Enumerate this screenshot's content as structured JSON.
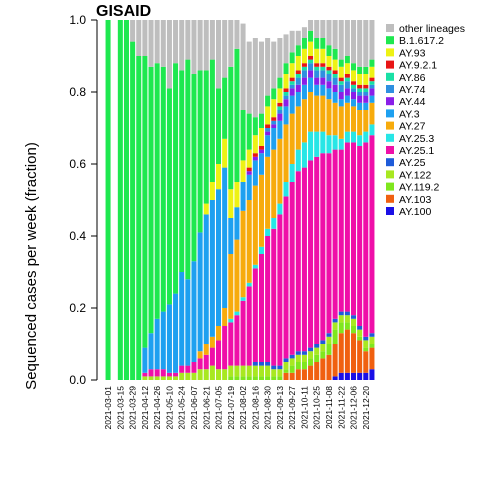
{
  "chart_data": {
    "type": "bar",
    "stacked": true,
    "title": "GISAID",
    "ylabel": "Sequenced cases per week (fraction)",
    "xlabel": "",
    "ylim": [
      0,
      1
    ],
    "y_ticks": [
      "0.0",
      "0.2",
      "0.4",
      "0.6",
      "0.8",
      "1.0"
    ],
    "x_tick_labels": [
      "2021-03-01",
      "2021-03-15",
      "2021-03-29",
      "2021-04-12",
      "2021-04-26",
      "2021-05-10",
      "2021-05-24",
      "2021-06-07",
      "2021-06-21",
      "2021-07-05",
      "2021-07-19",
      "2021-08-02",
      "2021-08-16",
      "2021-08-30",
      "2021-09-13",
      "2021-09-27",
      "2021-10-11",
      "2021-10-25",
      "2021-11-08",
      "2021-11-22",
      "2021-12-06",
      "2021-12-20"
    ],
    "categories": [
      "2021-03-01",
      "2021-03-08",
      "2021-03-15",
      "2021-03-22",
      "2021-03-29",
      "2021-04-05",
      "2021-04-12",
      "2021-04-19",
      "2021-04-26",
      "2021-05-03",
      "2021-05-10",
      "2021-05-17",
      "2021-05-24",
      "2021-05-31",
      "2021-06-07",
      "2021-06-14",
      "2021-06-21",
      "2021-06-28",
      "2021-07-05",
      "2021-07-12",
      "2021-07-19",
      "2021-07-26",
      "2021-08-02",
      "2021-08-09",
      "2021-08-16",
      "2021-08-23",
      "2021-08-30",
      "2021-09-06",
      "2021-09-13",
      "2021-09-20",
      "2021-09-27",
      "2021-10-04",
      "2021-10-11",
      "2021-10-18",
      "2021-10-25",
      "2021-11-01",
      "2021-11-08",
      "2021-11-15",
      "2021-11-22",
      "2021-11-29",
      "2021-12-06",
      "2021-12-13",
      "2021-12-20",
      "2021-12-27"
    ],
    "grid": false,
    "legend_position": "right",
    "series": [
      {
        "name": "AY.100",
        "color": "#1a0fe6",
        "values": [
          0,
          0,
          0,
          0,
          0,
          0,
          0,
          0,
          0,
          0,
          0,
          0,
          0,
          0,
          0,
          0,
          0,
          0,
          0,
          0,
          0,
          0,
          0,
          0,
          0,
          0,
          0,
          0,
          0,
          0,
          0,
          0,
          0,
          0,
          0,
          0,
          0,
          0.01,
          0.02,
          0.02,
          0.02,
          0.02,
          0.02,
          0.03
        ]
      },
      {
        "name": "AY.103",
        "color": "#f06010",
        "values": [
          0,
          0,
          0,
          0,
          0,
          0,
          0,
          0,
          0,
          0,
          0,
          0,
          0,
          0,
          0,
          0,
          0,
          0,
          0,
          0,
          0,
          0,
          0,
          0,
          0,
          0,
          0,
          0,
          0,
          0.02,
          0.02,
          0.03,
          0.03,
          0.04,
          0.05,
          0.06,
          0.07,
          0.09,
          0.11,
          0.12,
          0.11,
          0.09,
          0.06,
          0.06
        ]
      },
      {
        "name": "AY.119.2",
        "color": "#7fe71e",
        "values": [
          0,
          0,
          0,
          0,
          0,
          0,
          0,
          0,
          0,
          0,
          0,
          0,
          0,
          0,
          0,
          0,
          0,
          0,
          0,
          0,
          0.01,
          0.01,
          0.01,
          0.01,
          0.01,
          0.01,
          0.01,
          0.01,
          0.01,
          0.01,
          0.02,
          0.02,
          0.02,
          0.02,
          0.02,
          0.02,
          0.03,
          0.04,
          0.03,
          0.02,
          0.02,
          0.01,
          0.01,
          0.01
        ]
      },
      {
        "name": "AY.122",
        "color": "#a8e821",
        "values": [
          0,
          0,
          0,
          0,
          0,
          0,
          0.01,
          0.01,
          0.01,
          0.01,
          0.01,
          0.01,
          0.02,
          0.02,
          0.02,
          0.03,
          0.03,
          0.04,
          0.03,
          0.03,
          0.03,
          0.03,
          0.03,
          0.03,
          0.03,
          0.03,
          0.03,
          0.02,
          0.02,
          0.02,
          0.02,
          0.02,
          0.02,
          0.02,
          0.02,
          0.02,
          0.02,
          0.02,
          0.02,
          0.02,
          0.02,
          0.02,
          0.02,
          0.02
        ]
      },
      {
        "name": "AY.25",
        "color": "#1e5bd9",
        "values": [
          0,
          0,
          0,
          0,
          0,
          0,
          0,
          0,
          0,
          0,
          0,
          0,
          0,
          0,
          0,
          0,
          0,
          0,
          0,
          0,
          0,
          0,
          0,
          0,
          0.01,
          0.01,
          0.01,
          0.01,
          0.01,
          0.01,
          0.01,
          0.01,
          0.01,
          0.01,
          0.01,
          0.01,
          0.01,
          0.01,
          0.01,
          0.01,
          0.01,
          0.01,
          0.01,
          0.01
        ]
      },
      {
        "name": "AY.25.1",
        "color": "#ef0fa8",
        "values": [
          0,
          0,
          0,
          0,
          0,
          0,
          0.01,
          0.02,
          0.02,
          0.02,
          0.01,
          0.01,
          0.02,
          0.02,
          0.03,
          0.03,
          0.04,
          0.05,
          0.08,
          0.12,
          0.12,
          0.14,
          0.18,
          0.22,
          0.26,
          0.3,
          0.35,
          0.38,
          0.42,
          0.45,
          0.48,
          0.5,
          0.51,
          0.52,
          0.52,
          0.52,
          0.5,
          0.47,
          0.45,
          0.47,
          0.48,
          0.5,
          0.54,
          0.55
        ]
      },
      {
        "name": "AY.25.3",
        "color": "#27e6e6",
        "values": [
          0,
          0,
          0,
          0,
          0,
          0,
          0,
          0,
          0,
          0,
          0,
          0,
          0,
          0,
          0,
          0,
          0,
          0,
          0,
          0,
          0.01,
          0.01,
          0.01,
          0.01,
          0.01,
          0.02,
          0.02,
          0.03,
          0.03,
          0.04,
          0.05,
          0.06,
          0.07,
          0.08,
          0.07,
          0.06,
          0.05,
          0.04,
          0.03,
          0.03,
          0.03,
          0.03,
          0.03,
          0.03
        ]
      },
      {
        "name": "AY.27",
        "color": "#f7ab0c",
        "values": [
          0,
          0,
          0,
          0,
          0,
          0,
          0,
          0,
          0,
          0,
          0,
          0,
          0,
          0,
          0,
          0.02,
          0.03,
          0.03,
          0.04,
          0.05,
          0.18,
          0.2,
          0.24,
          0.23,
          0.22,
          0.2,
          0.2,
          0.19,
          0.18,
          0.16,
          0.14,
          0.12,
          0.12,
          0.11,
          0.1,
          0.1,
          0.1,
          0.09,
          0.09,
          0.08,
          0.07,
          0.07,
          0.06,
          0.06
        ]
      },
      {
        "name": "AY.3",
        "color": "#1ea0f0",
        "values": [
          0,
          0,
          0,
          0,
          0,
          0,
          0.07,
          0.1,
          0.14,
          0.16,
          0.19,
          0.22,
          0.26,
          0.24,
          0.28,
          0.33,
          0.36,
          0.38,
          0.38,
          0.39,
          0.1,
          0.09,
          0.08,
          0.07,
          0.07,
          0.06,
          0.06,
          0.06,
          0.05,
          0.05,
          0.05,
          0.04,
          0.04,
          0.04,
          0.03,
          0.03,
          0.03,
          0.03,
          0.02,
          0.02,
          0.02,
          0.02,
          0.02,
          0.02
        ]
      },
      {
        "name": "AY.44",
        "color": "#8a1ee8",
        "values": [
          0,
          0,
          0,
          0,
          0,
          0,
          0,
          0,
          0,
          0,
          0,
          0,
          0,
          0,
          0,
          0,
          0,
          0,
          0,
          0,
          0,
          0,
          0,
          0.01,
          0.01,
          0.01,
          0.01,
          0.01,
          0.02,
          0.02,
          0.02,
          0.02,
          0.02,
          0.02,
          0.02,
          0.02,
          0.02,
          0.02,
          0.02,
          0.02,
          0.02,
          0.02,
          0.02,
          0.02
        ]
      },
      {
        "name": "AY.74",
        "color": "#2e8fe0",
        "values": [
          0,
          0,
          0,
          0,
          0,
          0,
          0,
          0,
          0,
          0,
          0,
          0,
          0,
          0,
          0,
          0,
          0,
          0,
          0,
          0,
          0,
          0,
          0,
          0,
          0,
          0,
          0.01,
          0.01,
          0.01,
          0.01,
          0.01,
          0.02,
          0.02,
          0.02,
          0.02,
          0.02,
          0.02,
          0.02,
          0.02,
          0.02,
          0.01,
          0.01,
          0.01,
          0.01
        ]
      },
      {
        "name": "AY.86",
        "color": "#19e0a5",
        "values": [
          0,
          0,
          0,
          0,
          0,
          0,
          0,
          0,
          0,
          0,
          0,
          0,
          0,
          0,
          0,
          0,
          0,
          0,
          0,
          0,
          0,
          0,
          0,
          0,
          0,
          0,
          0,
          0,
          0.01,
          0.01,
          0.01,
          0.01,
          0.01,
          0.01,
          0.01,
          0.01,
          0.01,
          0.01,
          0.01,
          0.01,
          0.01,
          0.01,
          0.01,
          0.01
        ]
      },
      {
        "name": "AY.9.2.1",
        "color": "#e81515",
        "values": [
          0,
          0,
          0,
          0,
          0,
          0,
          0,
          0,
          0,
          0,
          0,
          0,
          0,
          0,
          0,
          0,
          0,
          0,
          0,
          0,
          0,
          0,
          0,
          0.01,
          0.01,
          0.01,
          0.01,
          0.01,
          0.01,
          0.01,
          0.01,
          0.01,
          0.01,
          0.01,
          0.01,
          0.01,
          0.01,
          0.01,
          0.01,
          0.01,
          0.01,
          0.01,
          0.01,
          0.01
        ]
      },
      {
        "name": "AY.93",
        "color": "#eef214",
        "values": [
          0,
          0,
          0,
          0,
          0,
          0,
          0,
          0,
          0,
          0,
          0,
          0,
          0,
          0,
          0,
          0,
          0.03,
          0.05,
          0.07,
          0.08,
          0.08,
          0.07,
          0.06,
          0.05,
          0.05,
          0.05,
          0.05,
          0.05,
          0.04,
          0.04,
          0.04,
          0.04,
          0.04,
          0.04,
          0.04,
          0.04,
          0.03,
          0.03,
          0.03,
          0.03,
          0.03,
          0.03,
          0.03,
          0.03
        ]
      },
      {
        "name": "B.1.617.2",
        "color": "#1ee84f",
        "values": [
          1.0,
          0,
          1.0,
          1.0,
          0.94,
          0.9,
          0.81,
          0.74,
          0.71,
          0.68,
          0.6,
          0.64,
          0.56,
          0.61,
          0.52,
          0.45,
          0.37,
          0.34,
          0.21,
          0.17,
          0.34,
          0.37,
          0.14,
          0.1,
          0.05,
          0.04,
          0.03,
          0.03,
          0.03,
          0.03,
          0.03,
          0.03,
          0.03,
          0.03,
          0.03,
          0.03,
          0.03,
          0.03,
          0.02,
          0.02,
          0.02,
          0.02,
          0.02,
          0.02
        ]
      },
      {
        "name": "other lineages",
        "color": "#bebebe",
        "values": [
          0,
          0,
          0,
          0,
          0.06,
          0.1,
          0.1,
          0.13,
          0.12,
          0.13,
          0.19,
          0.12,
          0.14,
          0.11,
          0.15,
          0.14,
          0.14,
          0.11,
          0.19,
          0.16,
          0.13,
          0.08,
          0.24,
          0.2,
          0.22,
          0.2,
          0.16,
          0.13,
          0.11,
          0.08,
          0.06,
          0.04,
          0.03,
          0.04,
          0.05,
          0.06,
          0.09,
          0.09,
          0.12,
          0.12,
          0.15,
          0.16,
          0.14,
          0.11
        ]
      }
    ],
    "legend_order": [
      "other lineages",
      "B.1.617.2",
      "AY.93",
      "AY.9.2.1",
      "AY.86",
      "AY.74",
      "AY.44",
      "AY.3",
      "AY.27",
      "AY.25.3",
      "AY.25.1",
      "AY.25",
      "AY.122",
      "AY.119.2",
      "AY.103",
      "AY.100"
    ]
  }
}
